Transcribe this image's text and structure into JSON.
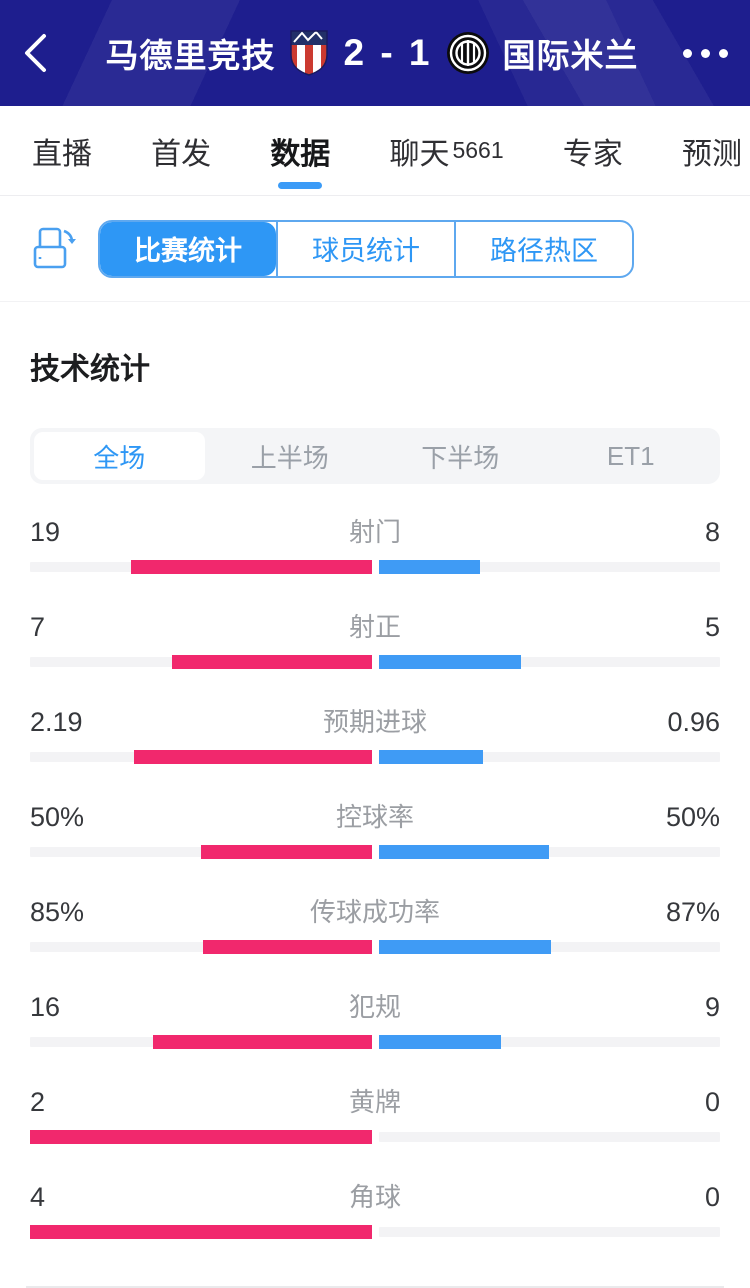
{
  "colors": {
    "header_bg": "#1e1e8e",
    "accent_blue": "#2e97f5",
    "home_bar": "#f1286d",
    "away_bar": "#3f9bf5",
    "track": "#f3f3f5"
  },
  "header": {
    "home_team": "马德里竞技",
    "away_team": "国际米兰",
    "score": "2 - 1"
  },
  "nav_tabs": {
    "live": "直播",
    "lineup": "首发",
    "data": "数据",
    "chat": "聊天",
    "chat_count": "5661",
    "expert": "专家",
    "predict": "预测"
  },
  "stat_tabs": {
    "match": "比赛统计",
    "player": "球员统计",
    "heatmap": "路径热区"
  },
  "section_title": "技术统计",
  "period_tabs": {
    "full": "全场",
    "first_half": "上半场",
    "second_half": "下半场",
    "et1": "ET1"
  },
  "chart_data": {
    "type": "bar",
    "title": "技术统计",
    "legend_position": "none",
    "series": [
      {
        "name": "马德里竞技",
        "color": "#f1286d"
      },
      {
        "name": "国际米兰",
        "color": "#3f9bf5"
      }
    ],
    "rows": [
      {
        "label": "射门",
        "home": "19",
        "away": "8",
        "home_val": 19,
        "away_val": 8
      },
      {
        "label": "射正",
        "home": "7",
        "away": "5",
        "home_val": 7,
        "away_val": 5
      },
      {
        "label": "预期进球",
        "home": "2.19",
        "away": "0.96",
        "home_val": 2.19,
        "away_val": 0.96
      },
      {
        "label": "控球率",
        "home": "50%",
        "away": "50%",
        "home_val": 50,
        "away_val": 50
      },
      {
        "label": "传球成功率",
        "home": "85%",
        "away": "87%",
        "home_val": 85,
        "away_val": 87
      },
      {
        "label": "犯规",
        "home": "16",
        "away": "9",
        "home_val": 16,
        "away_val": 9
      },
      {
        "label": "黄牌",
        "home": "2",
        "away": "0",
        "home_val": 2,
        "away_val": 0
      },
      {
        "label": "角球",
        "home": "4",
        "away": "0",
        "home_val": 4,
        "away_val": 0
      }
    ]
  }
}
